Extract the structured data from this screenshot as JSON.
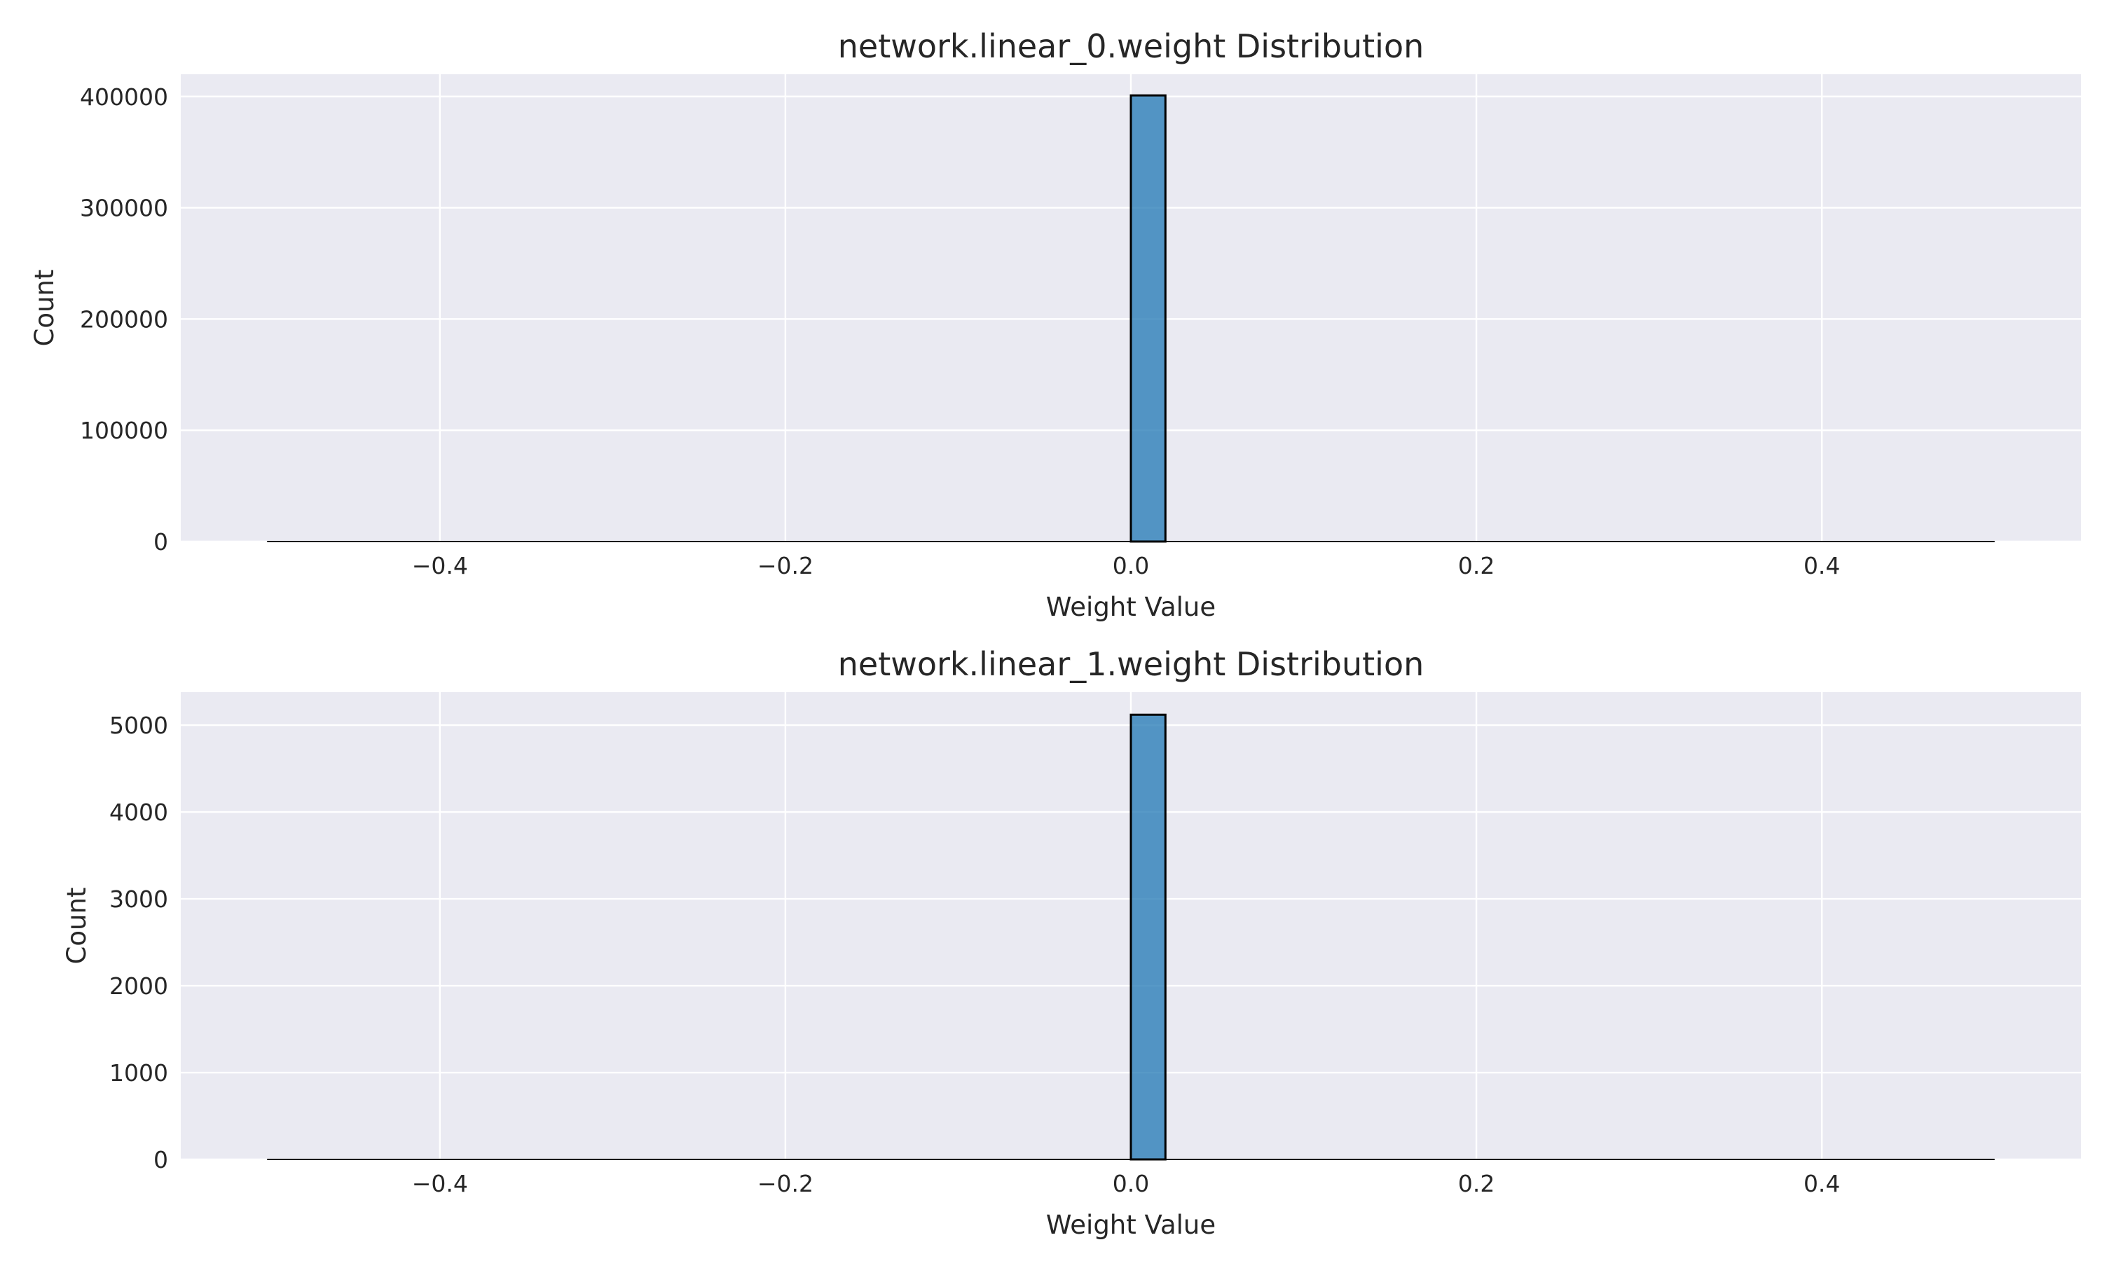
{
  "chart_data": [
    {
      "type": "bar",
      "title": "network.linear_0.weight Distribution",
      "xlabel": "Weight Value",
      "ylabel": "Count",
      "xlim": [
        -0.55,
        0.55
      ],
      "ylim": [
        0,
        420000
      ],
      "xticks": [
        -0.4,
        -0.2,
        0.0,
        0.2,
        0.4
      ],
      "xtick_labels": [
        "−0.4",
        "−0.2",
        "0.0",
        "0.2",
        "0.4"
      ],
      "yticks": [
        0,
        100000,
        200000,
        300000,
        400000
      ],
      "ytick_labels": [
        "0",
        "100000",
        "200000",
        "300000",
        "400000"
      ],
      "grid": true,
      "range": [
        -0.5,
        0.5
      ],
      "bins": [
        {
          "x0": 0.0,
          "x1": 0.02,
          "value": 401000
        }
      ]
    },
    {
      "type": "bar",
      "title": "network.linear_1.weight Distribution",
      "xlabel": "Weight Value",
      "ylabel": "Count",
      "xlim": [
        -0.55,
        0.55
      ],
      "ylim": [
        0,
        5380
      ],
      "xticks": [
        -0.4,
        -0.2,
        0.0,
        0.2,
        0.4
      ],
      "xtick_labels": [
        "−0.4",
        "−0.2",
        "0.0",
        "0.2",
        "0.4"
      ],
      "yticks": [
        0,
        1000,
        2000,
        3000,
        4000,
        5000
      ],
      "ytick_labels": [
        "0",
        "1000",
        "2000",
        "3000",
        "4000",
        "5000"
      ],
      "grid": true,
      "range": [
        -0.5,
        0.5
      ],
      "bins": [
        {
          "x0": 0.0,
          "x1": 0.02,
          "value": 5120
        }
      ]
    }
  ]
}
